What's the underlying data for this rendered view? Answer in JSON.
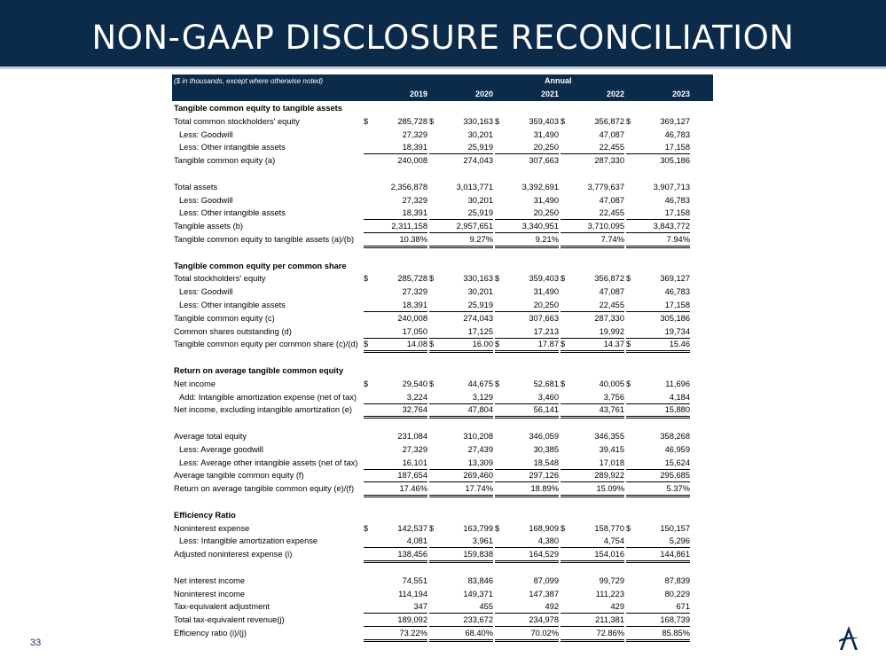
{
  "title": "NON-GAAP DISCLOSURE RECONCILIATION",
  "page_number": "33",
  "logo_icon": "stylized-A-logo",
  "table": {
    "note": "($ in thousands, except where otherwise noted)",
    "period_header": "Annual",
    "years": [
      "2019",
      "2020",
      "2021",
      "2022",
      "2023"
    ],
    "rows": [
      {
        "label": "Tangible common equity to tangible assets",
        "kind": "section"
      },
      {
        "label": "Total common stockholders' equity",
        "kind": "normal",
        "dollar": true,
        "values": [
          "285,728",
          "330,163",
          "359,403",
          "356,872",
          "369,127"
        ]
      },
      {
        "label": "Less: Goodwill",
        "kind": "indent",
        "values": [
          "27,329",
          "30,201",
          "31,490",
          "47,087",
          "46,783"
        ]
      },
      {
        "label": "Less: Other intangible assets",
        "kind": "indent",
        "underline": "single",
        "values": [
          "18,391",
          "25,919",
          "20,250",
          "22,455",
          "17,158"
        ]
      },
      {
        "label": "Tangible common equity (a)",
        "kind": "normal",
        "values": [
          "240,008",
          "274,043",
          "307,663",
          "287,330",
          "305,186"
        ]
      },
      {
        "label": "",
        "kind": "blank"
      },
      {
        "label": "Total assets",
        "kind": "normal",
        "values": [
          "2,356,878",
          "3,013,771",
          "3,392,691",
          "3,779,637",
          "3,907,713"
        ]
      },
      {
        "label": "Less: Goodwill",
        "kind": "indent",
        "values": [
          "27,329",
          "30,201",
          "31,490",
          "47,087",
          "46,783"
        ]
      },
      {
        "label": "Less: Other intangible assets",
        "kind": "indent",
        "underline": "single",
        "values": [
          "18,391",
          "25,919",
          "20,250",
          "22,455",
          "17,158"
        ]
      },
      {
        "label": "Tangible assets (b)",
        "kind": "normal",
        "underline": "single",
        "values": [
          "2,311,158",
          "2,957,651",
          "3,340,951",
          "3,710,095",
          "3,843,772"
        ]
      },
      {
        "label": "Tangible common equity to tangible assets (a)/(b)",
        "kind": "normal",
        "underline": "double",
        "values": [
          "10.38%",
          "9.27%",
          "9.21%",
          "7.74%",
          "7.94%"
        ]
      },
      {
        "label": "",
        "kind": "blank"
      },
      {
        "label": "Tangible common equity per common share",
        "kind": "section"
      },
      {
        "label": "Total stockholders' equity",
        "kind": "normal",
        "dollar": true,
        "values": [
          "285,728",
          "330,163",
          "359,403",
          "356,872",
          "369,127"
        ]
      },
      {
        "label": "Less: Goodwill",
        "kind": "indent",
        "values": [
          "27,329",
          "30,201",
          "31,490",
          "47,087",
          "46,783"
        ]
      },
      {
        "label": "Less: Other intangible assets",
        "kind": "indent",
        "underline": "single",
        "values": [
          "18,391",
          "25,919",
          "20,250",
          "22,455",
          "17,158"
        ]
      },
      {
        "label": "Tangible common equity (c)",
        "kind": "normal",
        "values": [
          "240,008",
          "274,043",
          "307,663",
          "287,330",
          "305,186"
        ]
      },
      {
        "label": "Common shares outstanding (d)",
        "kind": "normal",
        "underline": "single",
        "values": [
          "17,050",
          "17,125",
          "17,213",
          "19,992",
          "19,734"
        ]
      },
      {
        "label": "Tangible common equity per common share (c)/(d)",
        "kind": "normal",
        "dollar": true,
        "underline": "double",
        "values": [
          "14.08",
          "16.00",
          "17.87",
          "14.37",
          "15.46"
        ]
      },
      {
        "label": "",
        "kind": "blank"
      },
      {
        "label": "Return on average tangible common equity",
        "kind": "section"
      },
      {
        "label": "Net income",
        "kind": "normal",
        "dollar": true,
        "values": [
          "29,540",
          "44,675",
          "52,681",
          "40,005",
          "11,696"
        ]
      },
      {
        "label": "Add: Intangible amortization expense (net of tax)",
        "kind": "indent",
        "underline": "single",
        "values": [
          "3,224",
          "3,129",
          "3,460",
          "3,756",
          "4,184"
        ]
      },
      {
        "label": "Net income, excluding intangible amortization (e)",
        "kind": "normal",
        "underline": "double",
        "values": [
          "32,764",
          "47,804",
          "56,141",
          "43,761",
          "15,880"
        ]
      },
      {
        "label": "",
        "kind": "blank"
      },
      {
        "label": "Average total equity",
        "kind": "normal",
        "values": [
          "231,084",
          "310,208",
          "346,059",
          "346,355",
          "358,268"
        ]
      },
      {
        "label": "Less: Average goodwill",
        "kind": "indent",
        "values": [
          "27,329",
          "27,439",
          "30,385",
          "39,415",
          "46,959"
        ]
      },
      {
        "label": "Less: Average other intangible assets (net of tax)",
        "kind": "indent",
        "underline": "single",
        "values": [
          "16,101",
          "13,309",
          "18,548",
          "17,018",
          "15,624"
        ]
      },
      {
        "label": "Average tangible common equity (f)",
        "kind": "normal",
        "underline": "single",
        "values": [
          "187,654",
          "269,460",
          "297,126",
          "289,922",
          "295,685"
        ]
      },
      {
        "label": "Return on average tangible common equity (e)/(f)",
        "kind": "normal",
        "underline": "double",
        "values": [
          "17.46%",
          "17.74%",
          "18.89%",
          "15.09%",
          "5.37%"
        ]
      },
      {
        "label": "",
        "kind": "blank"
      },
      {
        "label": "Efficiency Ratio",
        "kind": "section"
      },
      {
        "label": "Noninterest expense",
        "kind": "normal",
        "dollar": true,
        "values": [
          "142,537",
          "163,799",
          "168,909",
          "158,770",
          "150,157"
        ]
      },
      {
        "label": "Less: Intangible amortization expense",
        "kind": "indent",
        "underline": "single",
        "values": [
          "4,081",
          "3,961",
          "4,380",
          "4,754",
          "5,296"
        ]
      },
      {
        "label": "Adjusted noninterest expense (i)",
        "kind": "normal",
        "underline": "double",
        "values": [
          "138,456",
          "159,838",
          "164,529",
          "154,016",
          "144,861"
        ]
      },
      {
        "label": "",
        "kind": "blank"
      },
      {
        "label": "Net interest income",
        "kind": "normal",
        "values": [
          "74,551",
          "83,846",
          "87,099",
          "99,729",
          "87,839"
        ]
      },
      {
        "label": "Noninterest income",
        "kind": "normal",
        "values": [
          "114,194",
          "149,371",
          "147,387",
          "111,223",
          "80,229"
        ]
      },
      {
        "label": "Tax-equivalent adjustment",
        "kind": "normal",
        "underline": "single",
        "values": [
          "347",
          "455",
          "492",
          "429",
          "671"
        ]
      },
      {
        "label": "Total tax-equivalent revenue(j)",
        "kind": "normal",
        "underline": "single",
        "values": [
          "189,092",
          "233,672",
          "234,978",
          "211,381",
          "168,739"
        ]
      },
      {
        "label": "Efficiency ratio (i)/(j)",
        "kind": "normal",
        "underline": "double",
        "values": [
          "73.22%",
          "68.40%",
          "70.02%",
          "72.86%",
          "85.85%"
        ]
      }
    ]
  }
}
